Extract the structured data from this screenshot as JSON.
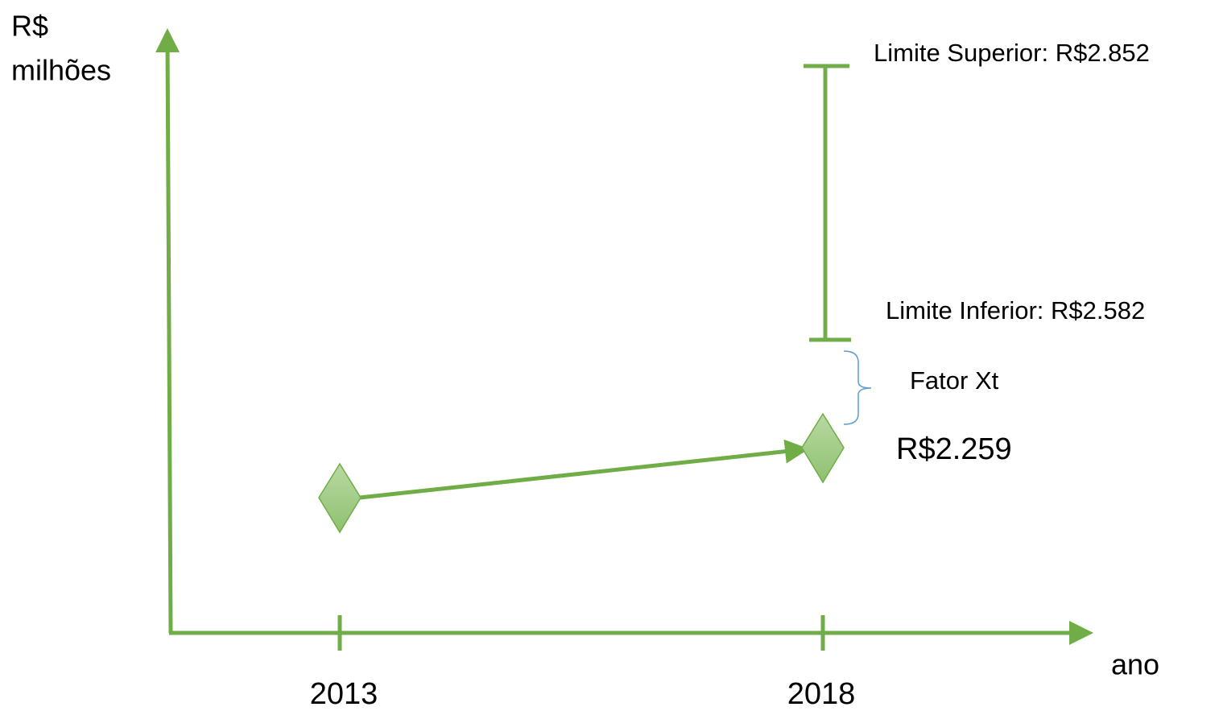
{
  "axis": {
    "y_label": [
      "R$",
      "milhões"
    ],
    "x_label": "ano"
  },
  "years": [
    "2013",
    "2018"
  ],
  "labels": {
    "upper": "Limite Superior: R$2.852",
    "lower": "Limite Inferior: R$2.582",
    "factor": "Fator Xt",
    "value": "R$2.259"
  }
}
